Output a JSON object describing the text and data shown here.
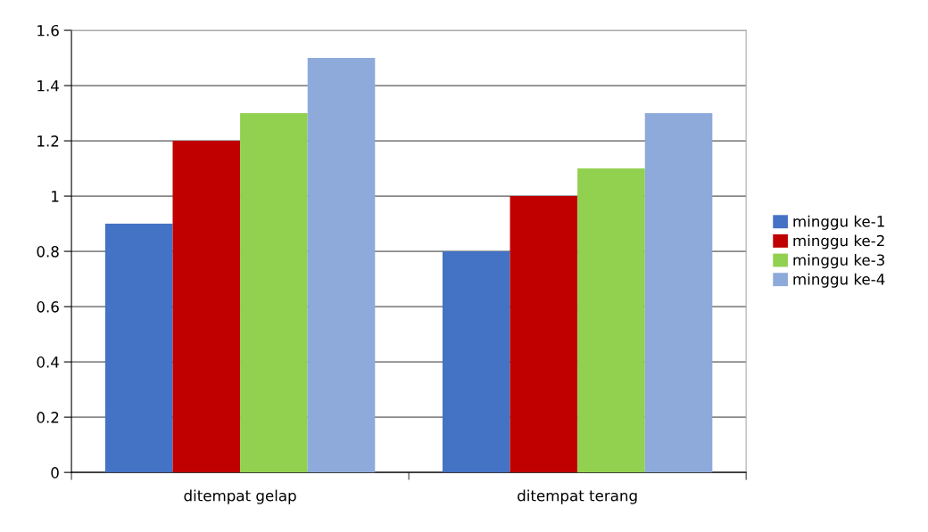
{
  "chart_data": {
    "type": "bar",
    "categories": [
      "ditempat gelap",
      "ditempat terang"
    ],
    "series": [
      {
        "name": "minggu ke-1",
        "color": "#4472c4",
        "values": [
          0.9,
          0.8
        ]
      },
      {
        "name": "minggu ke-2",
        "color": "#c00000",
        "values": [
          1.2,
          1.0
        ]
      },
      {
        "name": "minggu ke-3",
        "color": "#92d050",
        "values": [
          1.3,
          1.1
        ]
      },
      {
        "name": "minggu ke-4",
        "color": "#8eaadb",
        "values": [
          1.5,
          1.3
        ]
      }
    ],
    "ylim": [
      0,
      1.6
    ],
    "yticks": [
      {
        "value": 0,
        "label": "0"
      },
      {
        "value": 0.2,
        "label": "0.2"
      },
      {
        "value": 0.4,
        "label": "0.4"
      },
      {
        "value": 0.6,
        "label": "0.6"
      },
      {
        "value": 0.8,
        "label": "0.8"
      },
      {
        "value": 1,
        "label": "1"
      },
      {
        "value": 1.2,
        "label": "1.2"
      },
      {
        "value": 1.4,
        "label": "1.4"
      },
      {
        "value": 1.6,
        "label": "1.6"
      }
    ],
    "grid": "y",
    "legend": "right"
  }
}
